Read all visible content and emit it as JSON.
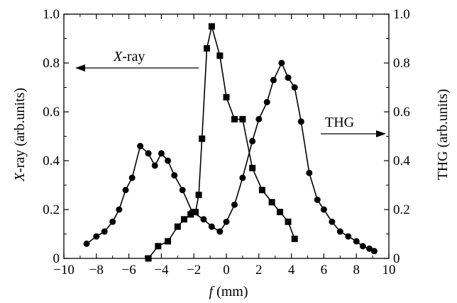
{
  "chart_data": {
    "type": "line",
    "x_range": [
      -10,
      10
    ],
    "x_ticks": [
      -10,
      -8,
      -6,
      -4,
      -2,
      0,
      2,
      4,
      6,
      8,
      10
    ],
    "x_tick_labels": [
      "−10",
      "−8",
      "−6",
      "−4",
      "−2",
      "0",
      "2",
      "4",
      "6",
      "8",
      "10"
    ],
    "y_range": [
      0,
      1.0
    ],
    "y_ticks": [
      0,
      0.2,
      0.4,
      0.6,
      0.8,
      1.0
    ],
    "y_tick_labels": [
      "0",
      "0.2",
      "0.4",
      "0.6",
      "0.8",
      "1.0"
    ],
    "y2_range": [
      0,
      1.0
    ],
    "y2_tick_labels": [
      "0",
      "0.2",
      "0.4",
      "0.6",
      "0.8",
      "1.0"
    ],
    "xlabel_italic": "f",
    "xlabel_rest": " (mm)",
    "ylabel_italic": "X",
    "ylabel_rest": "-ray  (arb.units)",
    "y2label": "THG  (arb.units)",
    "annotations": {
      "xray_italic": "X",
      "xray_rest": "-ray",
      "thg": "THG"
    },
    "series": [
      {
        "marker": "square",
        "axis": "left",
        "x": [
          -4.8,
          -4.2,
          -3.6,
          -3.0,
          -2.6,
          -2.2,
          -1.9,
          -1.7,
          -1.5,
          -1.2,
          -0.9,
          -0.4,
          0.0,
          0.5,
          1.0,
          1.6,
          2.2,
          2.8,
          3.3,
          3.8,
          4.2
        ],
        "y": [
          0.0,
          0.05,
          0.07,
          0.13,
          0.16,
          0.18,
          0.19,
          0.26,
          0.49,
          0.86,
          0.95,
          0.83,
          0.66,
          0.57,
          0.57,
          0.37,
          0.28,
          0.23,
          0.19,
          0.15,
          0.08
        ]
      },
      {
        "marker": "circle",
        "axis": "right",
        "x": [
          -8.6,
          -8.0,
          -7.5,
          -7.0,
          -6.6,
          -6.2,
          -5.8,
          -5.3,
          -4.8,
          -4.4,
          -4.0,
          -3.6,
          -3.2,
          -2.7,
          -2.1,
          -1.4,
          -0.9,
          -0.4,
          0.0,
          0.5,
          1.0,
          1.6,
          2.0,
          2.5,
          2.9,
          3.4,
          3.8,
          4.2,
          4.6,
          5.1,
          5.6,
          6.0,
          6.5,
          7.0,
          7.5,
          8.0,
          8.4,
          8.8,
          9.1
        ],
        "y": [
          0.06,
          0.09,
          0.11,
          0.15,
          0.2,
          0.28,
          0.33,
          0.46,
          0.43,
          0.38,
          0.43,
          0.4,
          0.34,
          0.28,
          0.19,
          0.16,
          0.13,
          0.11,
          0.15,
          0.22,
          0.33,
          0.48,
          0.57,
          0.64,
          0.73,
          0.8,
          0.74,
          0.7,
          0.56,
          0.35,
          0.24,
          0.2,
          0.15,
          0.11,
          0.09,
          0.07,
          0.05,
          0.04,
          0.03
        ]
      }
    ]
  }
}
